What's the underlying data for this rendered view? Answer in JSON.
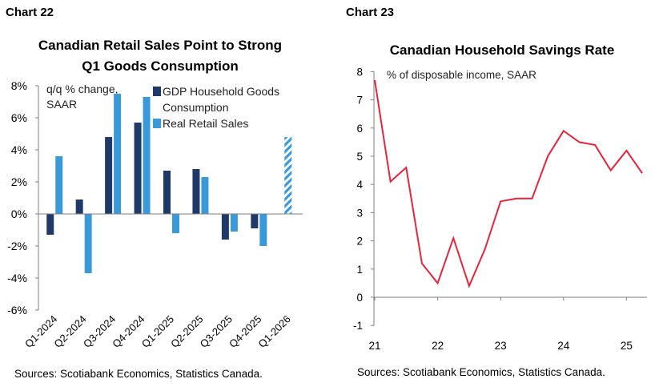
{
  "chart_labels": [
    "Chart 22",
    "Chart 23"
  ],
  "colors": {
    "dark_blue": "#1f3a68",
    "light_blue": "#3a9ad9",
    "red": "#e8233b",
    "axis": "#7f7f7f",
    "text": "#000000"
  },
  "chart_data": [
    {
      "type": "bar",
      "title": [
        "Canadian Retail Sales Point to Strong",
        "Q1 Goods Consumption"
      ],
      "ylabel": [
        "q/q % change,",
        "SAAR"
      ],
      "categories": [
        "Q1-2024",
        "Q2-2024",
        "Q3-2024",
        "Q4-2024",
        "Q1-2025",
        "Q2-2025",
        "Q3-2025",
        "Q4-2025",
        "Q1-2026"
      ],
      "series": [
        {
          "name": "GDP Household Goods Consumption",
          "legend_lines": [
            "GDP Household Goods",
            "Consumption"
          ],
          "values": [
            -1.3,
            0.9,
            4.8,
            5.7,
            2.7,
            2.8,
            -1.6,
            -0.9,
            null
          ],
          "color": "#1f3a68"
        },
        {
          "name": "Real Retail Sales",
          "legend_lines": [
            "Real Retail Sales"
          ],
          "values": [
            3.6,
            -3.7,
            7.5,
            7.3,
            -1.2,
            2.3,
            -1.1,
            -2.0,
            4.8
          ],
          "color": "#3a9ad9",
          "hatched_categories": [
            "Q1-2026"
          ]
        }
      ],
      "ylim": [
        -6,
        8
      ],
      "yticks": [
        "-6%",
        "-4%",
        "-2%",
        "0%",
        "2%",
        "4%",
        "6%",
        "8%"
      ],
      "ytick_values": [
        -6,
        -4,
        -2,
        0,
        2,
        4,
        6,
        8
      ],
      "legend_position": "top-left",
      "grid": false,
      "source": "Sources: Scotiabank Economics, Statistics Canada."
    },
    {
      "type": "line",
      "title": "Canadian Household Savings Rate",
      "ylabel": "% of disposable income, SAAR",
      "xticks": [
        "21",
        "22",
        "23",
        "24",
        "25"
      ],
      "xtick_values": [
        2021,
        2022,
        2023,
        2024,
        2025
      ],
      "yticks": [
        "-1",
        "0",
        "1",
        "2",
        "3",
        "4",
        "5",
        "6",
        "7",
        "8"
      ],
      "ytick_values": [
        -1,
        0,
        1,
        2,
        3,
        4,
        5,
        6,
        7,
        8
      ],
      "ylim": [
        -1,
        8
      ],
      "xlim": [
        2021,
        2025.33
      ],
      "series": [
        {
          "name": "",
          "color": "#e8233b",
          "x": [
            2021.0,
            2021.25,
            2021.5,
            2021.75,
            2022.0,
            2022.25,
            2022.5,
            2022.75,
            2023.0,
            2023.25,
            2023.5,
            2023.75,
            2024.0,
            2024.25,
            2024.5,
            2024.75,
            2025.0,
            2025.25
          ],
          "values": [
            7.7,
            4.1,
            4.6,
            1.2,
            0.5,
            2.1,
            0.4,
            1.7,
            3.4,
            3.5,
            3.5,
            5.0,
            5.9,
            5.5,
            5.4,
            4.5,
            5.2,
            4.4
          ]
        }
      ],
      "grid": false,
      "source": "Sources: Scotiabank Economics, Statistics Canada."
    }
  ]
}
